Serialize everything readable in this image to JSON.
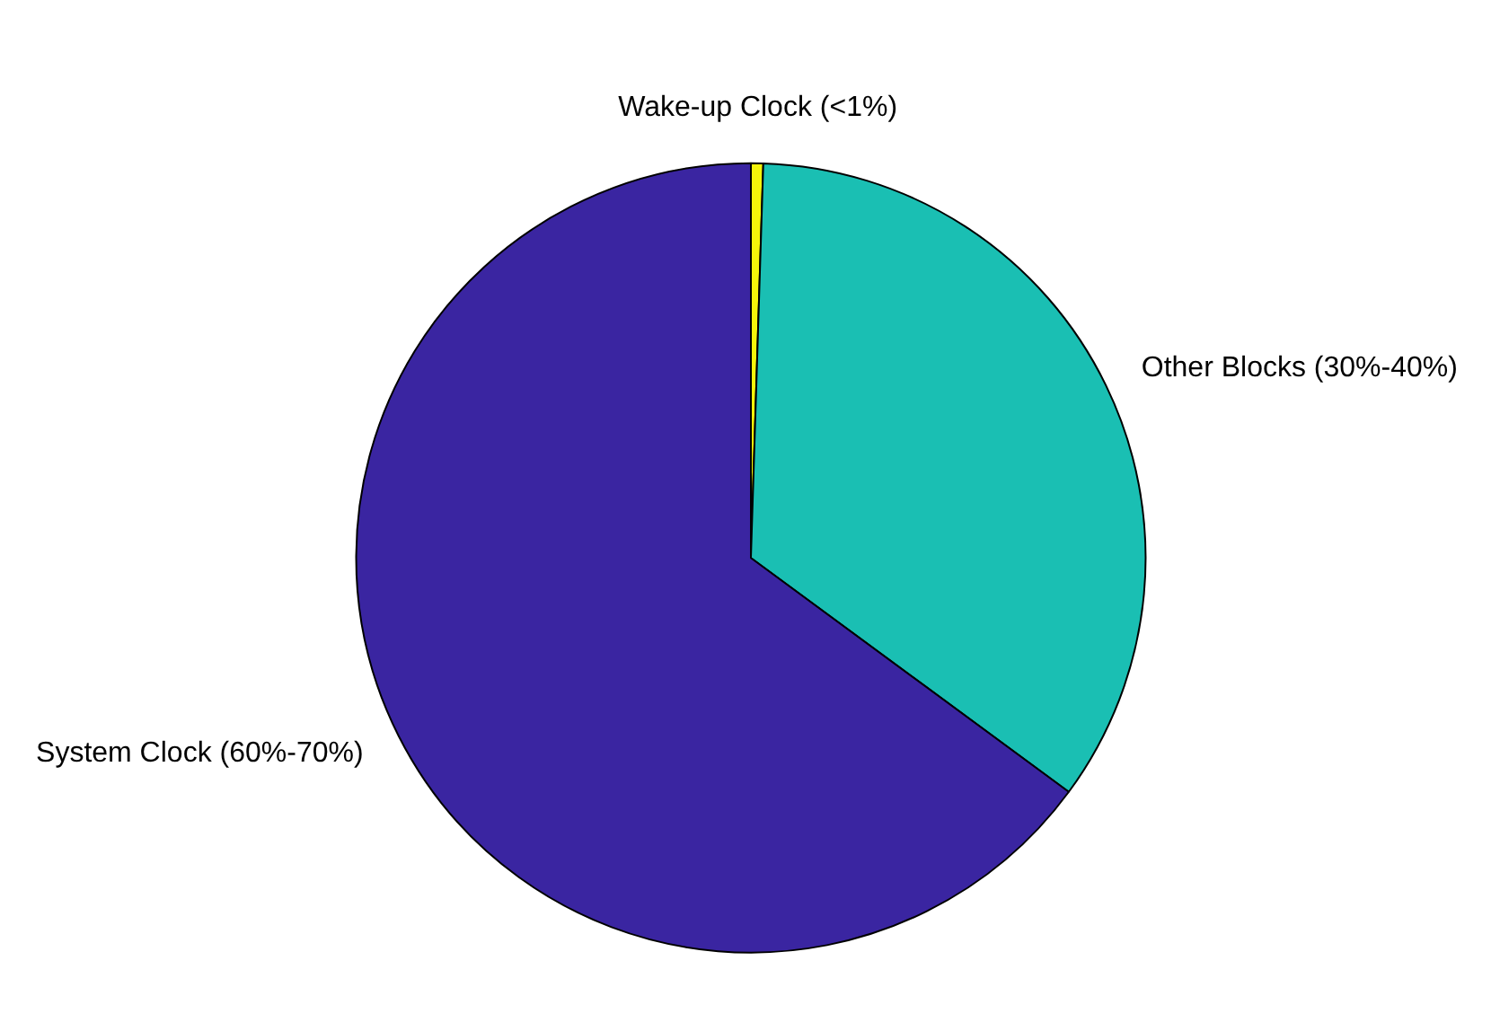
{
  "chart_data": {
    "type": "pie",
    "categories": [
      "Wake-up Clock (<1%)",
      "Other Blocks (30%-40%)",
      "System Clock (60%-70%)"
    ],
    "values": [
      0.5,
      34.6,
      64.9
    ],
    "colors": [
      "#f5f50a",
      "#1abfb3",
      "#3a25a1"
    ]
  }
}
